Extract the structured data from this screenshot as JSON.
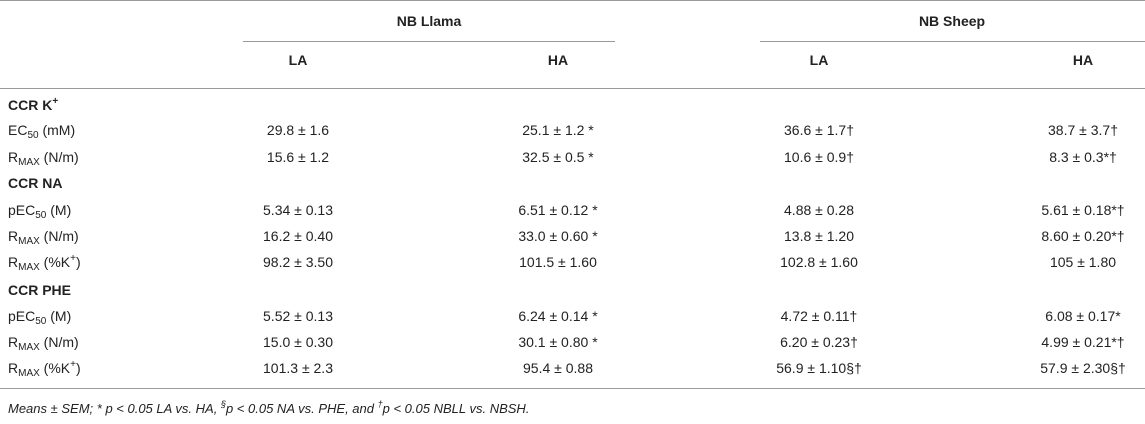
{
  "header": {
    "group_1": "NB Llama",
    "group_2": "NB Sheep",
    "cols": [
      "LA",
      "HA",
      "LA",
      "HA"
    ]
  },
  "sections": [
    {
      "title": "CCR K",
      "title_sup": "+",
      "rows": [
        {
          "base": "EC",
          "sub": "50",
          "sup": "",
          "unit": " (mM)",
          "values": [
            "29.8 ± 1.6",
            "25.1 ± 1.2 *",
            "36.6 ± 1.7†",
            "38.7 ± 3.7†"
          ]
        },
        {
          "base": "R",
          "sub": "MAX",
          "sup": "",
          "unit": " (N/m)",
          "values": [
            "15.6 ± 1.2",
            "32.5 ± 0.5 *",
            "10.6 ± 0.9†",
            "8.3 ± 0.3*†"
          ]
        }
      ]
    },
    {
      "title": "CCR NA",
      "title_sup": "",
      "rows": [
        {
          "base": "pEC",
          "sub": "50",
          "sup": "",
          "unit": " (M)",
          "values": [
            "5.34 ± 0.13",
            "6.51 ± 0.12 *",
            "4.88 ± 0.28",
            "5.61 ± 0.18*†"
          ]
        },
        {
          "base": "R",
          "sub": "MAX",
          "sup": "",
          "unit": " (N/m)",
          "values": [
            "16.2 ± 0.40",
            "33.0 ± 0.60 *",
            "13.8 ± 1.20",
            "8.60 ± 0.20*†"
          ]
        },
        {
          "base": "R",
          "sub": "MAX",
          "sup": "+",
          "unit": " (%K",
          "unit_end": ")",
          "values": [
            "98.2 ± 3.50",
            "101.5 ± 1.60",
            "102.8 ± 1.60",
            "105 ± 1.80"
          ]
        }
      ]
    },
    {
      "title": "CCR PHE",
      "title_sup": "",
      "rows": [
        {
          "base": "pEC",
          "sub": "50",
          "sup": "",
          "unit": " (M)",
          "values": [
            "5.52 ± 0.13",
            "6.24 ± 0.14 *",
            "4.72 ± 0.11†",
            "6.08 ± 0.17*"
          ]
        },
        {
          "base": "R",
          "sub": "MAX",
          "sup": "",
          "unit": " (N/m)",
          "values": [
            "15.0 ± 0.30",
            "30.1 ± 0.80 *",
            "6.20 ± 0.23†",
            "4.99 ± 0.21*†"
          ]
        },
        {
          "base": "R",
          "sub": "MAX",
          "sup": "+",
          "unit": " (%K",
          "unit_end": ")",
          "values": [
            "101.3 ± 2.3",
            "95.4 ± 0.88",
            "56.9 ± 1.10§†",
            "57.9 ± 2.30§†"
          ]
        }
      ]
    }
  ],
  "footnote": {
    "part1": "Means ± SEM; * p < 0.05 LA vs. HA, ",
    "sup1": "§",
    "part2": "p < 0.05 NA vs. PHE, and ",
    "sup2": "†",
    "part3": "p < 0.05 NBLL vs. NBSH."
  }
}
